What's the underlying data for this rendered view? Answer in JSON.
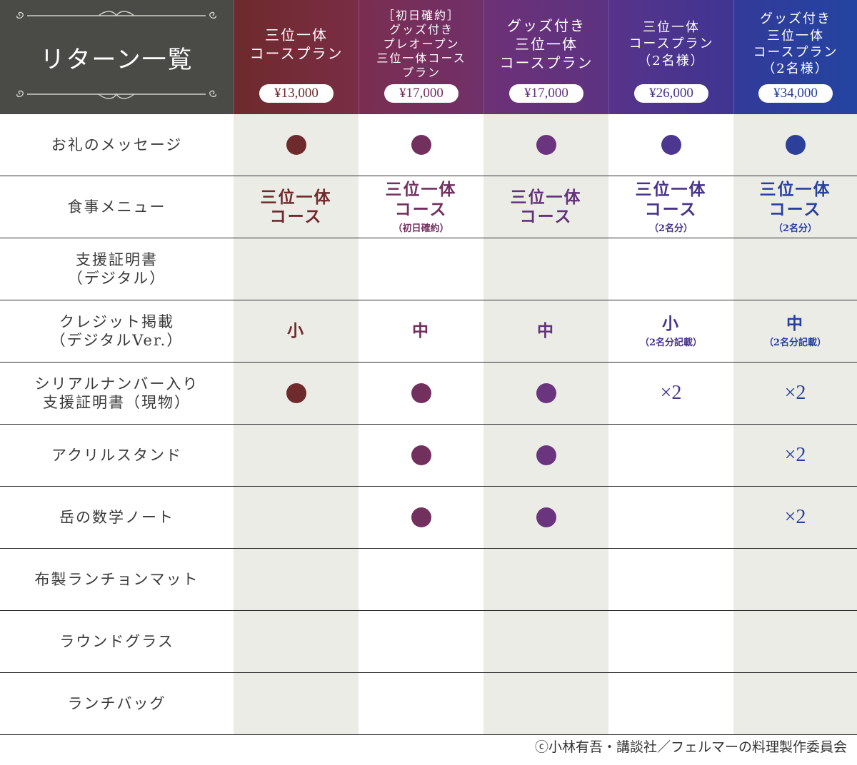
{
  "header": {
    "title": "リターン一覧",
    "plans": [
      {
        "name": "三位一体\nコースプラン",
        "price": "¥13,000",
        "size": 20
      },
      {
        "name": "［初日確約］\nグッズ付き\nプレオープン\n三位一体コース\nプラン",
        "price": "¥17,000",
        "size": 16
      },
      {
        "name": "グッズ付き\n三位一体\nコースプラン",
        "price": "¥17,000",
        "size": 20
      },
      {
        "name": "三位一体\nコースプラン\n（2名様）",
        "price": "¥26,000",
        "size": 18
      },
      {
        "name": "グッズ付き\n三位一体\nコースプラン\n（2名様）",
        "price": "¥34,000",
        "size": 18
      }
    ]
  },
  "rows": [
    {
      "label": "お礼のメッセージ",
      "values": [
        "dot",
        "dot",
        "dot",
        "dot",
        "dot"
      ]
    },
    {
      "label": "食事メニュー",
      "values": [
        {
          "main": "三位一体\nコース",
          "sub": ""
        },
        {
          "main": "三位一体\nコース",
          "sub": "（初日確約）"
        },
        {
          "main": "三位一体\nコース",
          "sub": ""
        },
        {
          "main": "三位一体\nコース",
          "sub": "（2名分）"
        },
        {
          "main": "三位一体\nコース",
          "sub": "（2名分）"
        }
      ]
    },
    {
      "label": "支援証明書\n（デジタル）",
      "values": [
        "",
        "",
        "",
        "",
        ""
      ]
    },
    {
      "label": "クレジット掲載\n（デジタルVer.）",
      "values": [
        {
          "main": "小",
          "sub": ""
        },
        {
          "main": "中",
          "sub": ""
        },
        {
          "main": "中",
          "sub": ""
        },
        {
          "main": "小",
          "sub": "（2名分記載）"
        },
        {
          "main": "中",
          "sub": "（2名分記載）"
        }
      ]
    },
    {
      "label": "シリアルナンバー入り\n支援証明書（現物）",
      "values": [
        "dot",
        "dot",
        "dot",
        "×2",
        "×2"
      ]
    },
    {
      "label": "アクリルスタンド",
      "values": [
        "",
        "dot",
        "dot",
        "",
        "×2"
      ]
    },
    {
      "label": "岳の数学ノート",
      "values": [
        "",
        "dot",
        "dot",
        "",
        "×2"
      ]
    },
    {
      "label": "布製ランチョンマット",
      "values": [
        "",
        "",
        "",
        "",
        ""
      ]
    },
    {
      "label": "ラウンドグラス",
      "values": [
        "",
        "",
        "",
        "",
        ""
      ]
    },
    {
      "label": "ランチバッグ",
      "values": [
        "",
        "",
        "",
        "",
        ""
      ]
    }
  ],
  "footer": "ⓒ小林有吾・講談社／フェルマーの料理製作委員会",
  "colors": [
    "#6e2a2c",
    "#72305f",
    "#62327a",
    "#48338c",
    "#28409e"
  ]
}
